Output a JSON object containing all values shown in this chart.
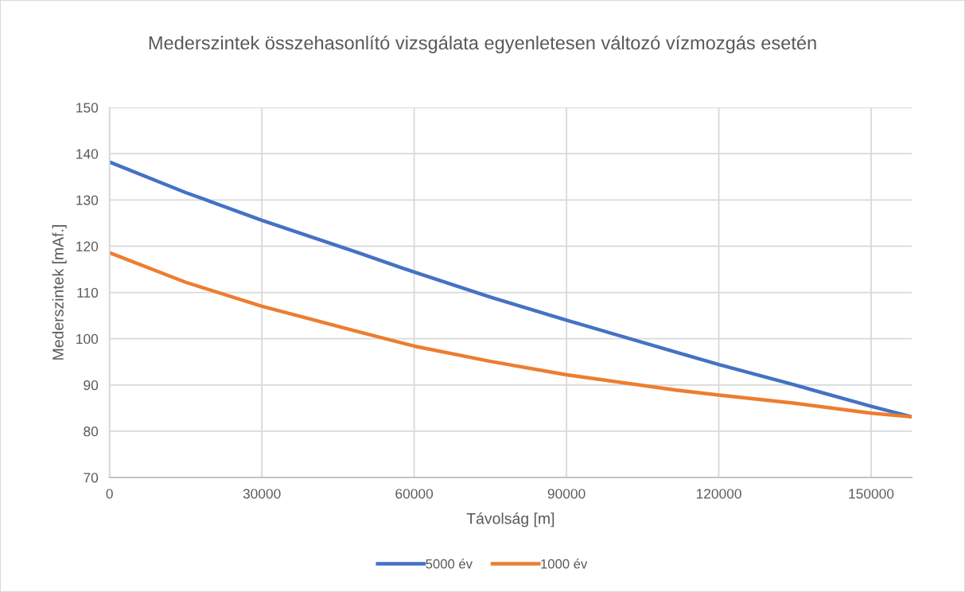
{
  "chart_data": {
    "type": "line",
    "title": "Mederszintek összehasonlító vizsgálata egyenletesen változó vízmozgás esetén",
    "xlabel": "Távolság [m]",
    "ylabel": "Mederszintek [mAf.]",
    "x": [
      0,
      15000,
      30000,
      49000,
      60000,
      75000,
      90000,
      111600,
      120000,
      134600,
      150000,
      158000
    ],
    "series": [
      {
        "name": "5000 év",
        "color": "#4472c4",
        "values": [
          138.2,
          131.6,
          125.6,
          118.6,
          114.4,
          109.0,
          104.0,
          97.1,
          94.4,
          90.1,
          85.4,
          83.1
        ]
      },
      {
        "name": "1000 év",
        "color": "#ed7d31",
        "values": [
          118.6,
          112.2,
          107.0,
          101.5,
          98.4,
          95.1,
          92.2,
          88.9,
          87.8,
          86.1,
          83.9,
          83.1
        ]
      }
    ],
    "xlim": [
      0,
      158000
    ],
    "ylim": [
      70,
      150
    ],
    "xticks": [
      0,
      30000,
      60000,
      90000,
      120000,
      150000
    ],
    "yticks": [
      70,
      80,
      90,
      100,
      110,
      120,
      130,
      140,
      150
    ],
    "grid": true,
    "legend": "bottom",
    "marker": "none",
    "line_style": "solid"
  }
}
